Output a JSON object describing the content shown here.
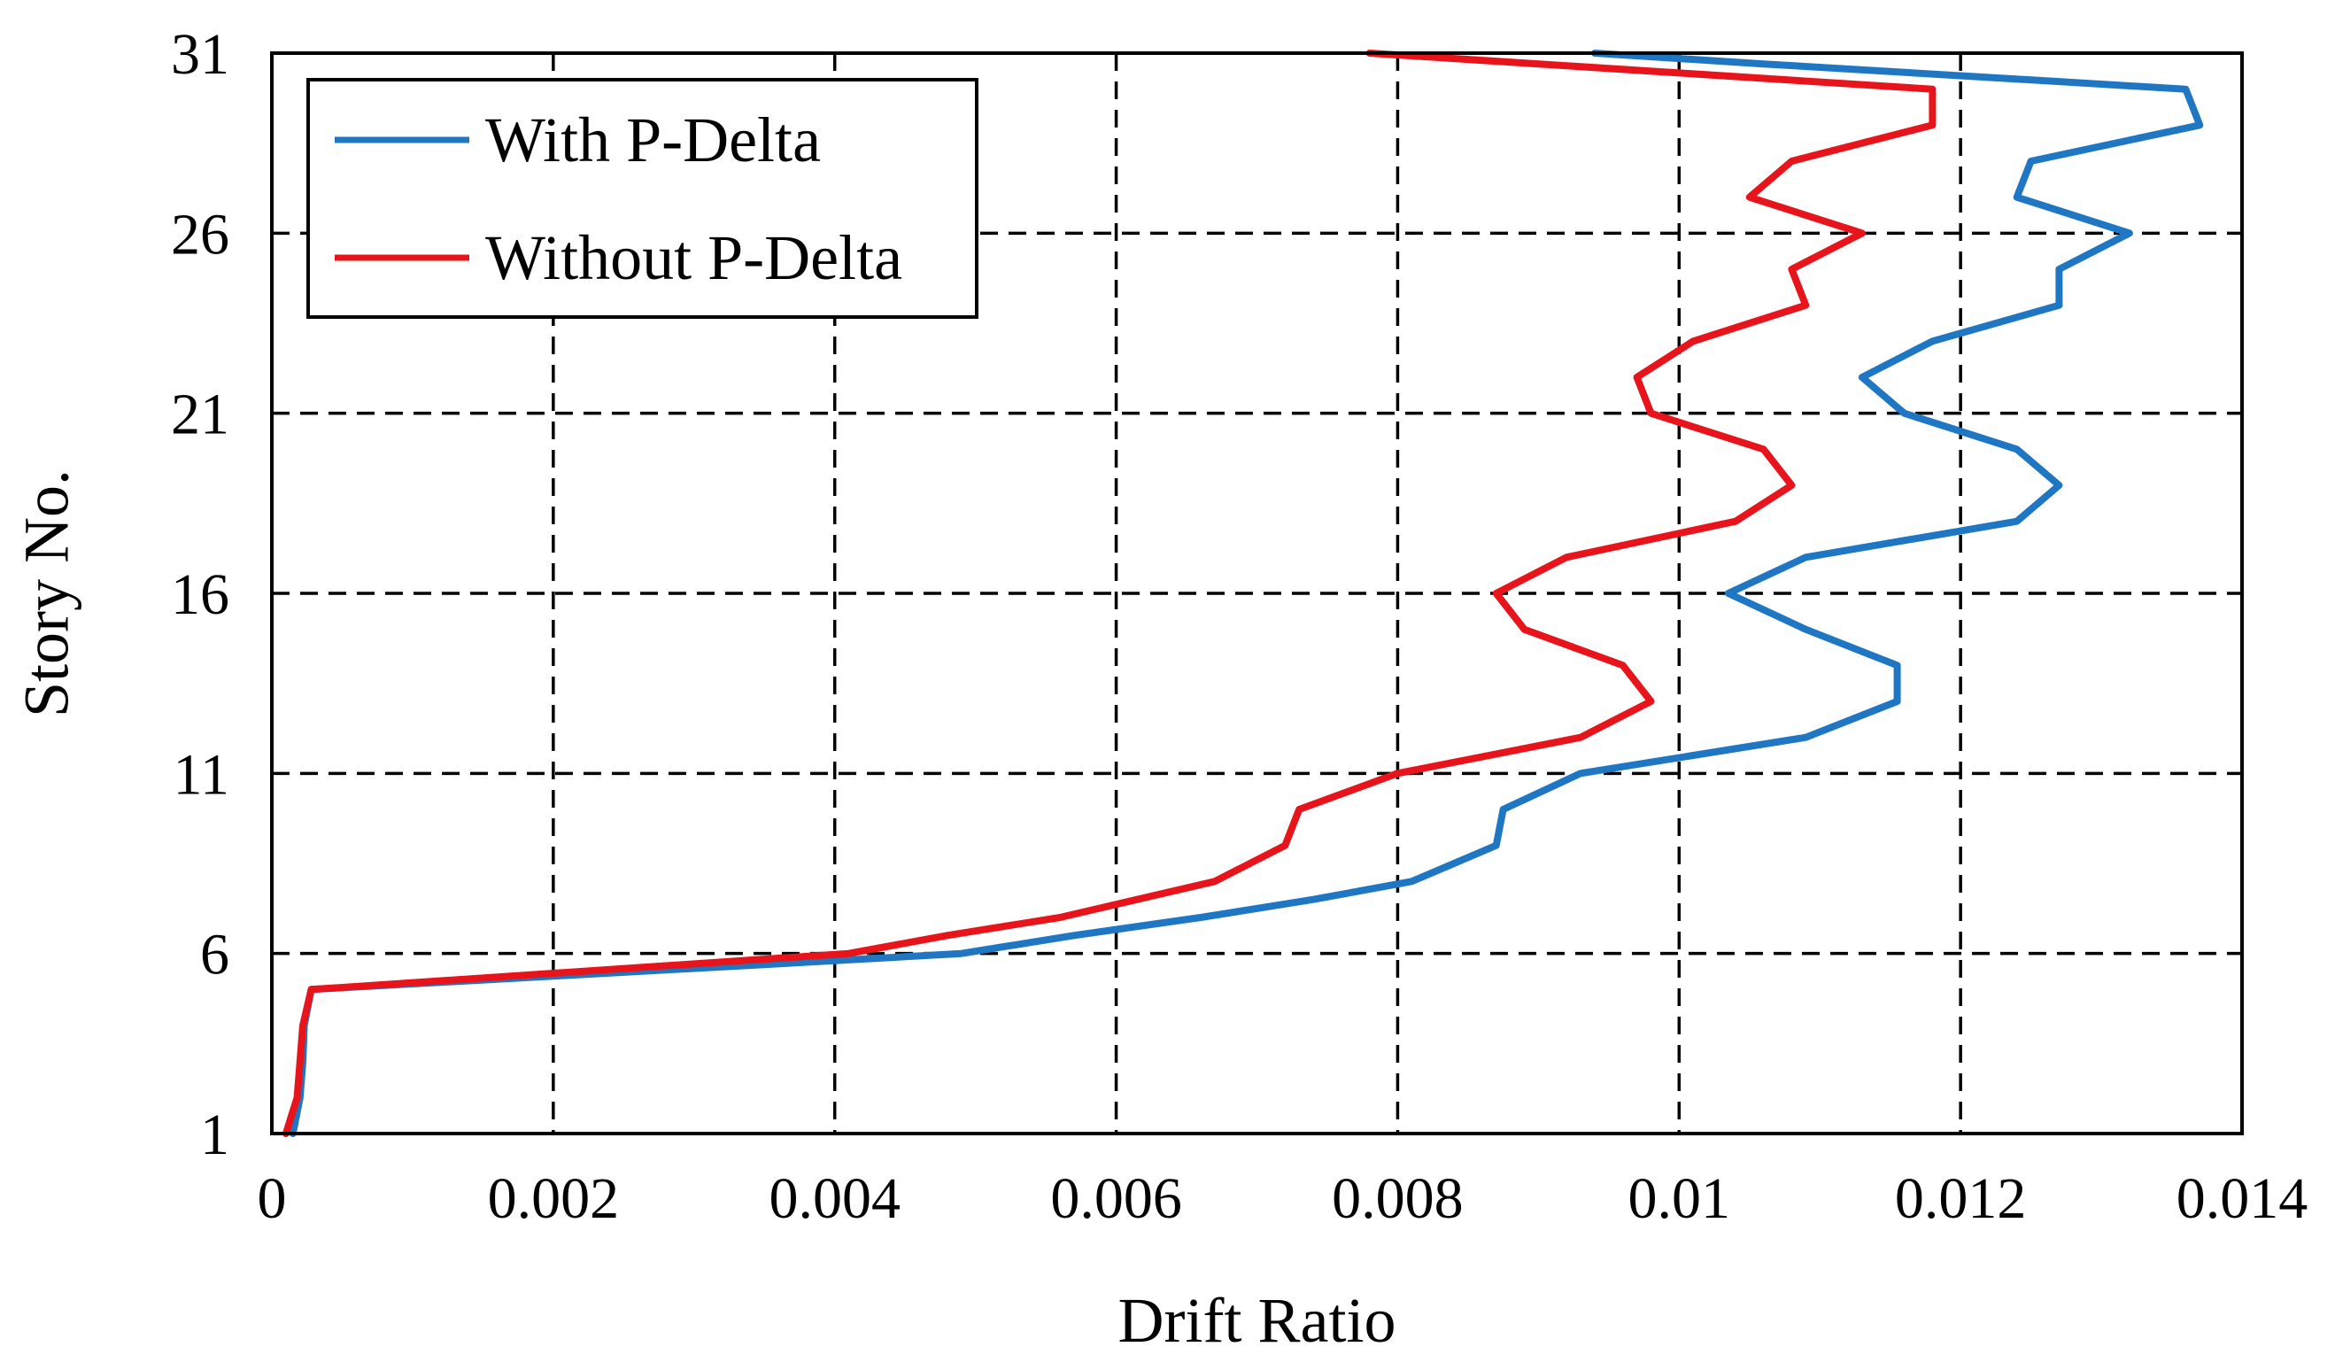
{
  "chart_data": {
    "type": "line",
    "title": "",
    "xlabel": "Drift Ratio",
    "ylabel": "Story No.",
    "xlim": [
      0,
      0.014
    ],
    "ylim": [
      1,
      31
    ],
    "xticks": [
      0,
      0.002,
      0.004,
      0.006,
      0.008,
      0.01,
      0.012,
      0.014
    ],
    "xtick_labels": [
      "0",
      "0.002",
      "0.004",
      "0.006",
      "0.008",
      "0.01",
      "0.012",
      "0.014"
    ],
    "yticks": [
      1,
      6,
      11,
      16,
      21,
      26,
      31
    ],
    "ytick_labels": [
      "1",
      "6",
      "11",
      "16",
      "21",
      "26",
      "31"
    ],
    "grid": "dashed",
    "legend_position": "top-left",
    "series": [
      {
        "name": "With P-Delta",
        "color": "#1f77c4",
        "x": [
          0.00015,
          0.0002,
          0.00022,
          0.00023,
          0.00028,
          0.004,
          0.0049,
          0.0057,
          0.0066,
          0.0074,
          0.0081,
          0.0087,
          0.00875,
          0.0093,
          0.0101,
          0.0109,
          0.01155,
          0.01155,
          0.0109,
          0.01035,
          0.0109,
          0.0124,
          0.0127,
          0.0124,
          0.0116,
          0.0113,
          0.0118,
          0.0127,
          0.0127,
          0.0132,
          0.0124,
          0.0125,
          0.0137,
          0.0136,
          0.0106,
          0.0094
        ],
        "y": [
          1,
          2,
          3,
          4,
          5,
          5.8,
          6,
          6.5,
          7,
          7.5,
          8,
          9,
          10,
          11,
          11.5,
          12,
          13,
          14,
          15,
          16,
          17,
          18,
          19,
          20,
          21,
          22,
          23,
          24,
          25,
          26,
          27,
          28,
          29,
          30,
          30.7,
          31
        ]
      },
      {
        "name": "Without P-Delta",
        "color": "#e8141c",
        "x": [
          0.0001,
          0.00018,
          0.0002,
          0.00022,
          0.00028,
          0.0041,
          0.0048,
          0.0056,
          0.0067,
          0.0072,
          0.0073,
          0.008,
          0.0093,
          0.0098,
          0.0096,
          0.0089,
          0.0087,
          0.0092,
          0.0104,
          0.0108,
          0.0106,
          0.0098,
          0.0097,
          0.0101,
          0.0109,
          0.0108,
          0.0113,
          0.0105,
          0.0108,
          0.0118,
          0.0118,
          0.0078
        ],
        "y": [
          1,
          2,
          3,
          4,
          5,
          6,
          6.5,
          7,
          8,
          9,
          10,
          11,
          12,
          13,
          14,
          15,
          16,
          17,
          18,
          19,
          20,
          21,
          22,
          23,
          24,
          25,
          26,
          27,
          28,
          29,
          30,
          31
        ]
      }
    ]
  }
}
